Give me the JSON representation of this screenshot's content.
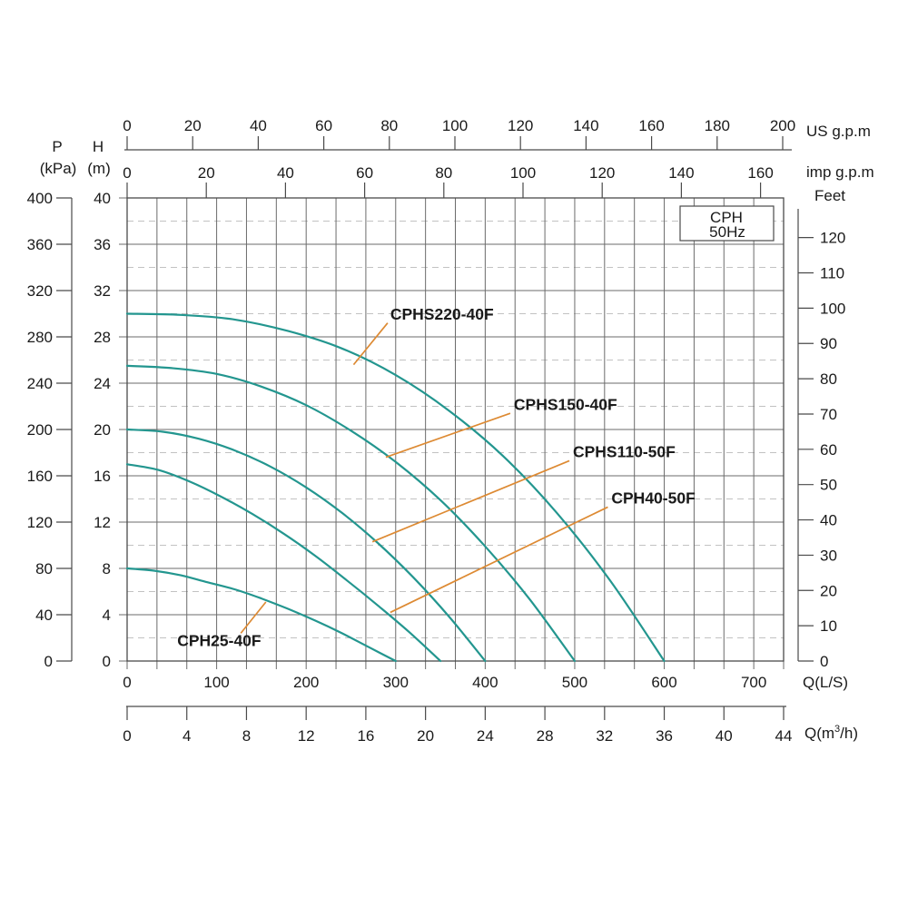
{
  "chart_data": {
    "type": "line",
    "title_box": {
      "line1": "CPH",
      "line2": "50Hz"
    },
    "x_axes": {
      "us_gpm": {
        "label": "US g.p.m",
        "ticks": [
          0,
          20,
          40,
          60,
          80,
          100,
          120,
          140,
          160,
          180,
          200
        ]
      },
      "imp_gpm": {
        "label": "imp g.p.m",
        "ticks": [
          0,
          20,
          40,
          60,
          80,
          100,
          120,
          140,
          160
        ]
      },
      "l_min": {
        "label": "Q(L/S)",
        "ticks": [
          0,
          100,
          200,
          300,
          400,
          500,
          600,
          700
        ]
      },
      "m3h": {
        "label_pre": "Q(m",
        "label_sup": "3",
        "label_post": "/h)",
        "ticks": [
          0,
          4,
          8,
          12,
          16,
          20,
          24,
          28,
          32,
          36,
          40,
          44
        ]
      }
    },
    "y_axes": {
      "kpa": {
        "header_line1": "P",
        "header_line2": "(kPa)",
        "ticks": [
          0,
          40,
          80,
          120,
          160,
          200,
          240,
          280,
          320,
          360,
          400
        ]
      },
      "m": {
        "header_line1": "H",
        "header_line2": "(m)",
        "ticks": [
          0,
          4,
          8,
          12,
          16,
          20,
          24,
          28,
          32,
          36,
          40
        ]
      },
      "feet": {
        "label": "Feet",
        "ticks": [
          0,
          10,
          20,
          30,
          40,
          50,
          60,
          70,
          80,
          90,
          100,
          110,
          120
        ]
      }
    },
    "ranges": {
      "m3h": [
        0,
        44
      ],
      "h_m": [
        0,
        40
      ],
      "us_gpm": [
        0,
        200
      ],
      "imp_gpm": [
        0,
        160
      ],
      "kpa": [
        0,
        400
      ],
      "feet": [
        0,
        120
      ]
    },
    "grid": {
      "x_step_m3h": 2,
      "y_solid_step_m": 4,
      "y_dashed_offset_m": 2
    },
    "series": [
      {
        "name": "CPHS220-40F",
        "points_lmin_m": [
          [
            0,
            30
          ],
          [
            60,
            29.9
          ],
          [
            120,
            29.5
          ],
          [
            180,
            28.5
          ],
          [
            240,
            27.0
          ],
          [
            300,
            24.7
          ],
          [
            360,
            21.6
          ],
          [
            420,
            17.7
          ],
          [
            480,
            12.8
          ],
          [
            540,
            6.9
          ],
          [
            600,
            0
          ]
        ]
      },
      {
        "name": "CPHS150-40F",
        "points_lmin_m": [
          [
            0,
            25.5
          ],
          [
            50,
            25.3
          ],
          [
            100,
            24.8
          ],
          [
            150,
            23.7
          ],
          [
            200,
            22.1
          ],
          [
            250,
            19.9
          ],
          [
            300,
            17.2
          ],
          [
            350,
            13.9
          ],
          [
            400,
            9.9
          ],
          [
            450,
            5.3
          ],
          [
            500,
            0
          ]
        ]
      },
      {
        "name": "CPHS110-50F",
        "points_lmin_m": [
          [
            0,
            20
          ],
          [
            40,
            19.8
          ],
          [
            80,
            19.2
          ],
          [
            120,
            18.2
          ],
          [
            160,
            16.8
          ],
          [
            200,
            15.0
          ],
          [
            240,
            12.8
          ],
          [
            280,
            10.2
          ],
          [
            320,
            7.2
          ],
          [
            360,
            3.8
          ],
          [
            400,
            0
          ]
        ]
      },
      {
        "name": "CPH40-50F",
        "points_lmin_m": [
          [
            0,
            17
          ],
          [
            35,
            16.5
          ],
          [
            70,
            15.5
          ],
          [
            105,
            14.2
          ],
          [
            140,
            12.7
          ],
          [
            175,
            11.0
          ],
          [
            210,
            9.1
          ],
          [
            245,
            7.0
          ],
          [
            280,
            4.8
          ],
          [
            315,
            2.5
          ],
          [
            350,
            0
          ]
        ]
      },
      {
        "name": "CPH25-40F",
        "points_lmin_m": [
          [
            0,
            8
          ],
          [
            30,
            7.8
          ],
          [
            60,
            7.4
          ],
          [
            90,
            6.8
          ],
          [
            120,
            6.2
          ],
          [
            150,
            5.4
          ],
          [
            180,
            4.5
          ],
          [
            210,
            3.5
          ],
          [
            240,
            2.4
          ],
          [
            270,
            1.2
          ],
          [
            300,
            0
          ]
        ]
      }
    ],
    "annotations": [
      {
        "label": "CPHS220-40F",
        "leader_lmin_m": [
          [
            253,
            25.6
          ],
          [
            291,
            29.2
          ]
        ],
        "text_lmin_m": [
          294,
          29.5
        ]
      },
      {
        "label": "CPHS150-40F",
        "leader_lmin_m": [
          [
            289,
            17.6
          ],
          [
            428,
            21.4
          ]
        ],
        "text_lmin_m": [
          432,
          21.7
        ]
      },
      {
        "label": "CPHS110-50F",
        "leader_lmin_m": [
          [
            274,
            10.3
          ],
          [
            494,
            17.3
          ]
        ],
        "text_lmin_m": [
          498,
          17.6
        ]
      },
      {
        "label": "CPH40-50F",
        "leader_lmin_m": [
          [
            294,
            4.2
          ],
          [
            537,
            13.3
          ]
        ],
        "text_lmin_m": [
          541,
          13.6
        ]
      },
      {
        "label": "CPH25-40F",
        "leader_lmin_m": [
          [
            155,
            5.1
          ],
          [
            127,
            2.4
          ]
        ],
        "text_lmin_m": [
          56,
          1.3
        ]
      }
    ],
    "colors": {
      "curve": "#23968F",
      "leader": "#DD8A33",
      "grid": "#6b6b6b",
      "grid_dashed": "#c2c2c2",
      "axis": "#4a4a4a",
      "text": "#1a1a1a",
      "background": "#ffffff"
    }
  }
}
